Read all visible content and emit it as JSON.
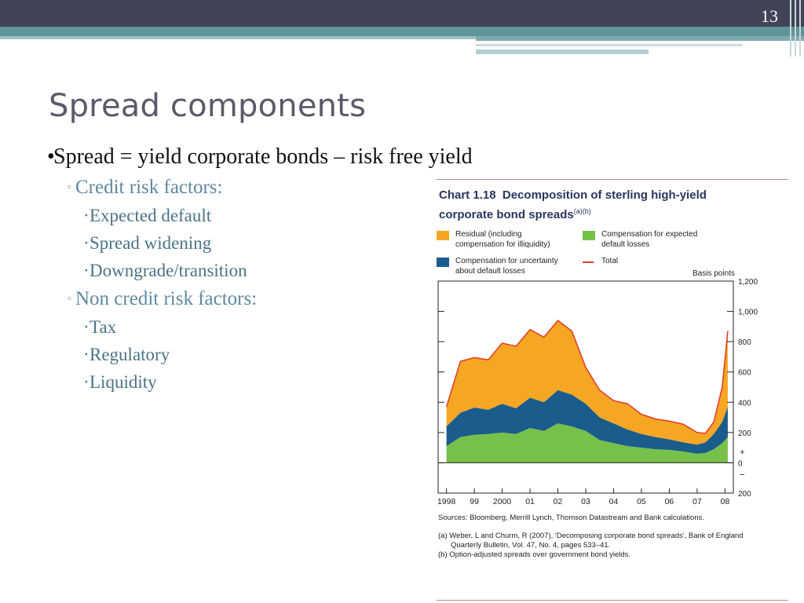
{
  "slide": {
    "page_number": "13",
    "title": "Spread components"
  },
  "bullets": {
    "main": "Spread = yield corporate bonds – risk free yield",
    "credit_header": "Credit risk factors:",
    "credit_items": [
      "Expected default",
      "Spread widening",
      "Downgrade/transition"
    ],
    "noncredit_header": "Non credit risk factors:",
    "noncredit_items": [
      "Tax",
      "Regulatory",
      "Liquidity"
    ],
    "markers": {
      "level1": "•",
      "level2": "▫",
      "level3": "·"
    }
  },
  "figure": {
    "chart_number": "Chart 1.18",
    "title_part1": "Decomposition of sterling high-yield",
    "title_part2": "corporate bond spreads",
    "title_notes": "(a)(b)",
    "legend": [
      {
        "line1": "Residual (including",
        "line2": "compensation for illiquidity)",
        "color": "#f5a623"
      },
      {
        "line1": "Compensation for expected",
        "line2": "default losses",
        "color": "#77c04a"
      },
      {
        "line1": "Compensation for uncertainty",
        "line2": "about default losses",
        "color": "#1a5c8c"
      },
      {
        "line1": "Total",
        "line2": "",
        "color": "#e03a2a"
      }
    ],
    "units_label": "Basis points",
    "sources": "Sources: Bloomberg, Merrill Lynch, Thomson Datastream and Bank calculations.",
    "note_a1": "(a) Weber, L and Churm, R (2007), 'Decomposing corporate bond spreads', Bank of England",
    "note_a2": "Quarterly Bulletin, Vol. 47, No. 4, pages 533–41.",
    "note_b": "(b) Option-adjusted spreads over government bond yields."
  },
  "chart_data": {
    "type": "area",
    "x_tick_labels": [
      "1998",
      "99",
      "2000",
      "01",
      "02",
      "03",
      "04",
      "05",
      "06",
      "07",
      "08"
    ],
    "y_tick_labels": [
      "1,200",
      "1,000",
      "800",
      "600",
      "400",
      "200",
      "+",
      "0",
      "–",
      "200"
    ],
    "ylim": [
      -200,
      1200
    ],
    "ylabel": "Basis points",
    "x": [
      1998.0,
      1998.5,
      1999.0,
      1999.5,
      2000.0,
      2000.5,
      2001.0,
      2001.5,
      2002.0,
      2002.5,
      2003.0,
      2003.5,
      2004.0,
      2004.5,
      2005.0,
      2005.5,
      2006.0,
      2006.5,
      2007.0,
      2007.3,
      2007.6,
      2007.9,
      2008.1
    ],
    "series": [
      {
        "name": "Compensation for expected default losses",
        "color": "#77c04a",
        "values": [
          110,
          170,
          185,
          190,
          200,
          190,
          230,
          210,
          260,
          240,
          210,
          150,
          130,
          110,
          100,
          90,
          85,
          75,
          60,
          65,
          90,
          130,
          170
        ]
      },
      {
        "name": "Compensation for uncertainty about default losses",
        "color": "#1a5c8c",
        "values": [
          130,
          160,
          180,
          160,
          190,
          170,
          200,
          190,
          220,
          210,
          180,
          150,
          130,
          110,
          90,
          80,
          70,
          60,
          60,
          70,
          100,
          140,
          200
        ]
      },
      {
        "name": "Residual (including compensation for illiquidity)",
        "color": "#f5a623",
        "values": [
          130,
          340,
          330,
          330,
          400,
          410,
          450,
          430,
          460,
          420,
          240,
          180,
          150,
          170,
          130,
          120,
          120,
          120,
          80,
          60,
          80,
          230,
          500
        ]
      },
      {
        "name": "Total",
        "color": "#e03a2a",
        "values": [
          370,
          670,
          695,
          680,
          790,
          770,
          880,
          830,
          940,
          870,
          630,
          480,
          410,
          390,
          320,
          290,
          275,
          255,
          200,
          195,
          270,
          500,
          870
        ]
      }
    ]
  }
}
